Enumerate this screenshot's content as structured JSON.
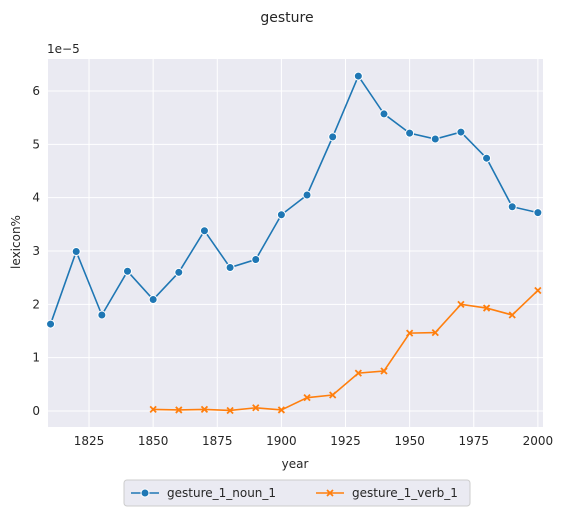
{
  "chart_data": {
    "type": "line",
    "title": "gesture",
    "xlabel": "year",
    "ylabel": "lexicon%",
    "y_scale_label": "1e−5",
    "xlim": [
      1809,
      2002
    ],
    "ylim": [
      -0.3,
      6.6
    ],
    "x_ticks": [
      1825,
      1850,
      1875,
      1900,
      1925,
      1950,
      1975,
      2000
    ],
    "y_ticks": [
      0,
      1,
      2,
      3,
      4,
      5,
      6
    ],
    "grid": true,
    "legend_position": "bottom-center",
    "series": [
      {
        "name": "gesture_1_noun_1",
        "color": "#1f77b4",
        "marker": "circle",
        "x": [
          1810,
          1820,
          1830,
          1840,
          1850,
          1860,
          1870,
          1880,
          1890,
          1900,
          1910,
          1920,
          1930,
          1940,
          1950,
          1960,
          1970,
          1980,
          1990,
          2000
        ],
        "values": [
          1.63,
          2.99,
          1.8,
          2.62,
          2.09,
          2.6,
          3.38,
          2.69,
          2.84,
          3.68,
          4.05,
          5.14,
          6.28,
          5.57,
          5.21,
          5.1,
          5.23,
          4.74,
          3.83,
          3.72
        ]
      },
      {
        "name": "gesture_1_verb_1",
        "color": "#ff7f0e",
        "marker": "x",
        "x": [
          1850,
          1860,
          1870,
          1880,
          1890,
          1900,
          1910,
          1920,
          1930,
          1940,
          1950,
          1960,
          1970,
          1980,
          1990,
          2000
        ],
        "values": [
          0.03,
          0.02,
          0.03,
          0.01,
          0.06,
          0.02,
          0.25,
          0.3,
          0.71,
          0.75,
          1.46,
          1.47,
          2.0,
          1.93,
          1.8,
          2.26
        ]
      }
    ]
  }
}
